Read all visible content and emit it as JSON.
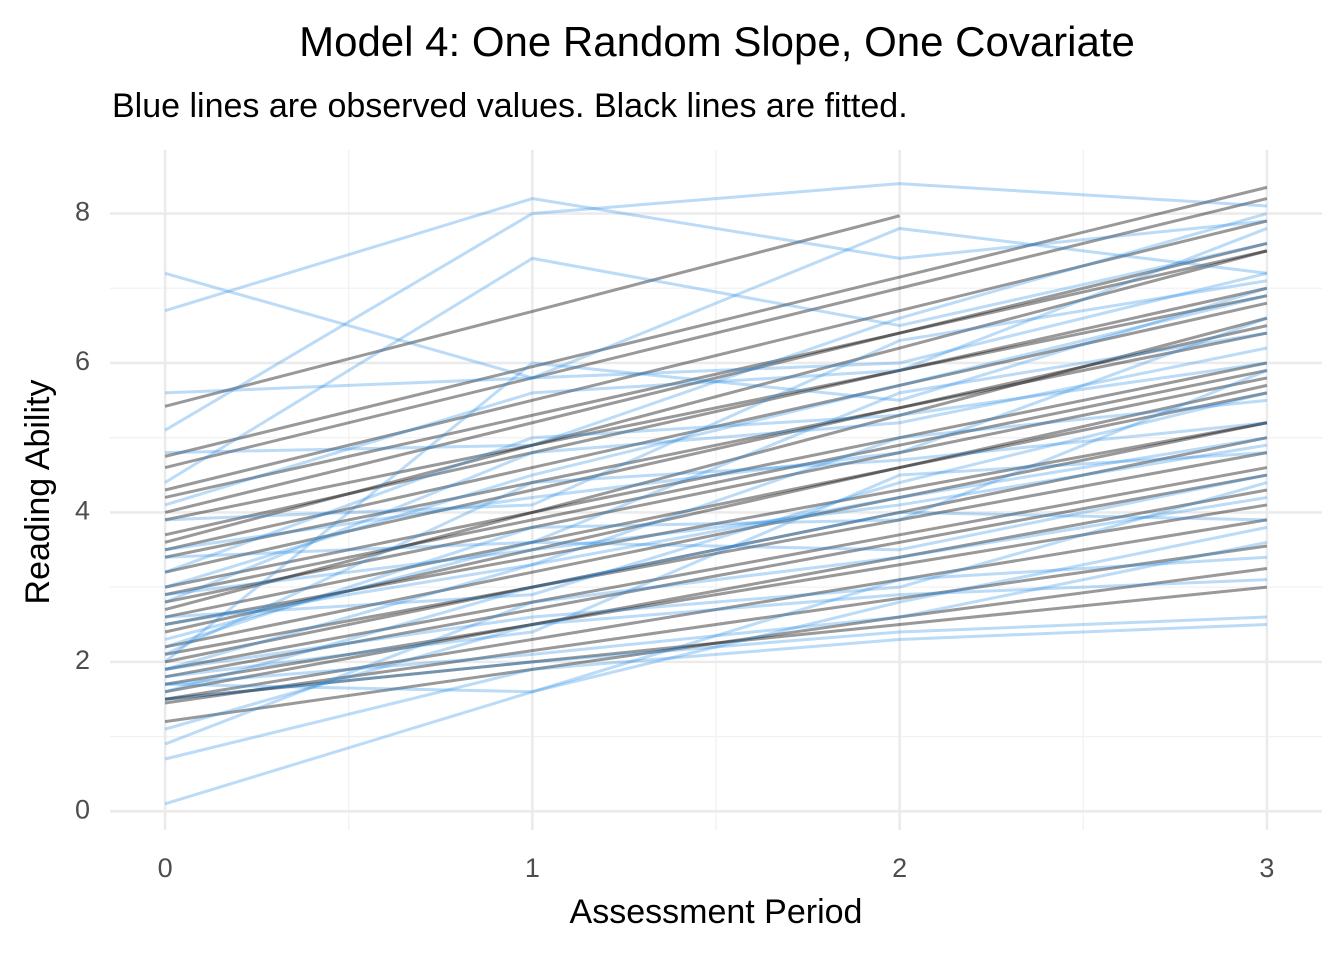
{
  "chart_data": {
    "type": "line",
    "title": "Model 4: One Random Slope, One Covariate",
    "subtitle": "Blue lines are observed values. Black lines are fitted.",
    "x_label": "Assessment Period",
    "y_label": "Reading Ability",
    "x": [
      0,
      1,
      2,
      3
    ],
    "xlim": [
      -0.15,
      3.15
    ],
    "ylim": [
      -0.25,
      8.85
    ],
    "xticks": [
      0,
      1,
      2,
      3
    ],
    "yticks": [
      0,
      2,
      4,
      6,
      8
    ],
    "xminor": [
      0.5,
      1.5,
      2.5
    ],
    "yminor": [
      1,
      3,
      5,
      7
    ],
    "grid": true,
    "series": [
      {
        "color": "#000000",
        "alpha": 0.4,
        "lines": [
          [
            5.42,
            6.69,
            7.97,
            null
          ],
          [
            4.75,
            5.95,
            7.15,
            8.35
          ],
          [
            4.6,
            5.8,
            7.0,
            8.2
          ],
          [
            4.3,
            5.5,
            6.7,
            7.9
          ],
          [
            4.2,
            5.3,
            6.4,
            7.5
          ],
          [
            4.0,
            5.2,
            6.4,
            7.6
          ],
          [
            3.9,
            4.9,
            5.9,
            6.9
          ],
          [
            3.7,
            4.8,
            5.9,
            7.0
          ],
          [
            3.5,
            4.6,
            5.7,
            6.8
          ],
          [
            3.4,
            4.4,
            5.4,
            6.4
          ],
          [
            3.2,
            4.3,
            5.4,
            6.5
          ],
          [
            3.0,
            4.0,
            5.0,
            6.0
          ],
          [
            2.9,
            3.9,
            4.9,
            5.9
          ],
          [
            2.8,
            3.8,
            4.8,
            5.8
          ],
          [
            2.6,
            3.6,
            4.6,
            5.6
          ],
          [
            2.5,
            3.4,
            4.3,
            5.2
          ],
          [
            2.4,
            3.5,
            4.6,
            5.7
          ],
          [
            2.2,
            3.2,
            4.2,
            5.2
          ],
          [
            2.1,
            3.0,
            3.9,
            4.8
          ],
          [
            2.0,
            3.0,
            4.0,
            5.0
          ],
          [
            1.9,
            2.8,
            3.7,
            4.6
          ],
          [
            1.8,
            2.7,
            3.6,
            4.5
          ],
          [
            1.7,
            2.5,
            3.3,
            4.1
          ],
          [
            1.6,
            2.5,
            3.4,
            4.3
          ],
          [
            1.5,
            2.3,
            3.1,
            3.9
          ],
          [
            1.45,
            2.15,
            2.85,
            3.55
          ],
          [
            1.2,
            1.9,
            2.6,
            3.25
          ],
          [
            1.5,
            2.0,
            2.5,
            3.0
          ],
          [
            3.6,
            4.9,
            6.2,
            7.5
          ],
          [
            2.7,
            4.0,
            5.3,
            6.6
          ]
        ]
      },
      {
        "color": "#1e88e5",
        "alpha": 0.3,
        "lines": [
          [
            6.7,
            8.2,
            7.4,
            7.9
          ],
          [
            7.2,
            5.8,
            6.0,
            7.2
          ],
          [
            0.1,
            1.6,
            2.8,
            3.8
          ],
          [
            0.7,
            1.9,
            2.3,
            2.5
          ],
          [
            5.1,
            8.0,
            8.4,
            8.1
          ],
          [
            4.4,
            7.4,
            6.5,
            7.6
          ],
          [
            0.9,
            2.8,
            3.4,
            4.2
          ],
          [
            1.1,
            2.5,
            2.9,
            3.1
          ],
          [
            5.6,
            5.8,
            7.8,
            7.2
          ],
          [
            2.0,
            6.0,
            5.5,
            7.0
          ],
          [
            4.8,
            4.9,
            6.6,
            8.0
          ],
          [
            1.7,
            2.1,
            2.6,
            3.6
          ],
          [
            2.2,
            3.8,
            3.9,
            5.9
          ],
          [
            3.0,
            4.5,
            5.7,
            6.9
          ],
          [
            1.9,
            3.3,
            4.2,
            5.0
          ],
          [
            2.5,
            3.3,
            5.0,
            5.5
          ],
          [
            3.5,
            4.2,
            4.8,
            6.6
          ],
          [
            1.8,
            2.4,
            4.5,
            4.8
          ],
          [
            2.8,
            4.8,
            5.2,
            6.2
          ],
          [
            1.6,
            3.0,
            4.0,
            3.9
          ],
          [
            3.9,
            4.1,
            6.3,
            7.1
          ],
          [
            2.3,
            3.6,
            3.5,
            4.5
          ],
          [
            1.5,
            2.0,
            2.4,
            2.6
          ],
          [
            4.1,
            5.6,
            5.9,
            7.8
          ],
          [
            2.6,
            2.9,
            4.4,
            5.6
          ],
          [
            3.2,
            5.0,
            5.3,
            6.0
          ],
          [
            1.9,
            2.6,
            3.0,
            4.4
          ],
          [
            2.1,
            4.4,
            4.7,
            5.2
          ],
          [
            3.4,
            3.6,
            5.6,
            6.4
          ],
          [
            1.7,
            1.6,
            3.1,
            3.4
          ],
          [
            2.9,
            3.5,
            4.1,
            4.9
          ]
        ]
      }
    ]
  }
}
